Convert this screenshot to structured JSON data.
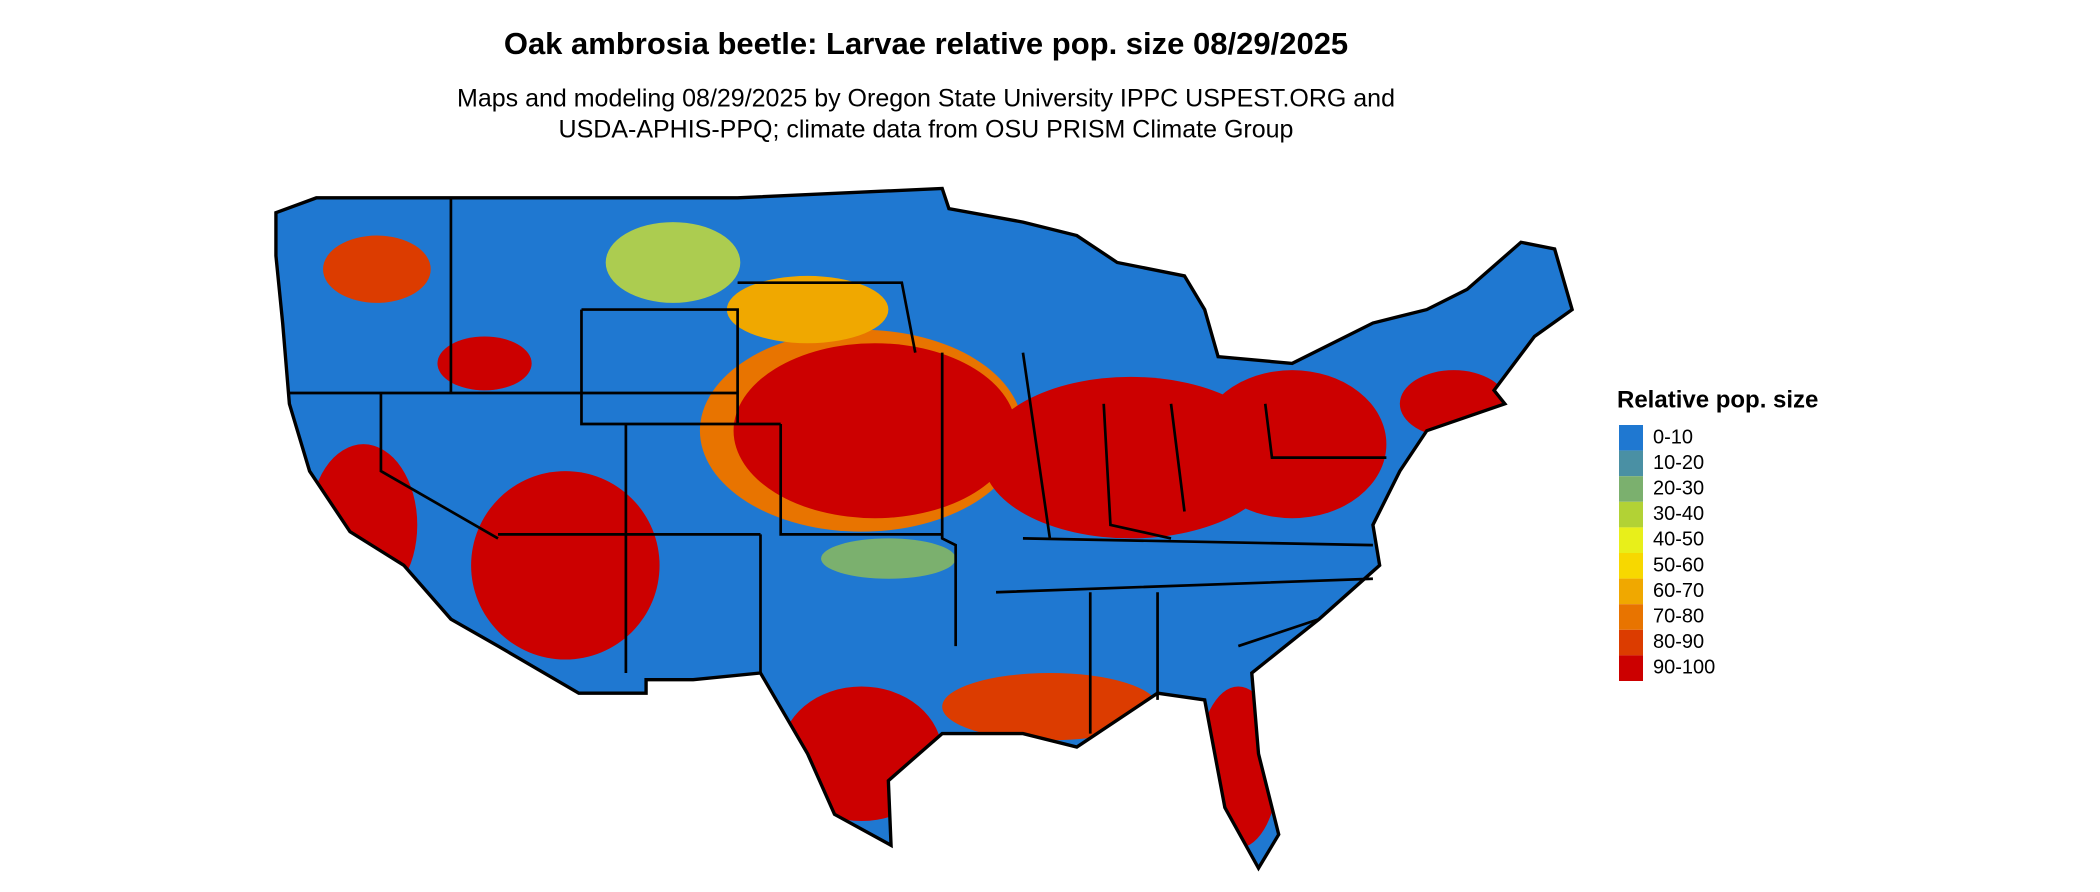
{
  "title": "Oak ambrosia beetle: Larvae relative pop. size 08/29/2025",
  "subtitle": [
    "Maps and modeling 08/29/2025 by Oregon State University IPPC USPEST.ORG and",
    "USDA-APHIS-PPQ; climate data from OSU PRISM Climate Group"
  ],
  "legend": {
    "title": "Relative pop. size",
    "items": [
      {
        "label": "0-10",
        "color": "#1f78d1"
      },
      {
        "label": "10-20",
        "color": "#4a90a4"
      },
      {
        "label": "20-30",
        "color": "#7bb06e"
      },
      {
        "label": "30-40",
        "color": "#b2d235"
      },
      {
        "label": "40-50",
        "color": "#e8ef1a"
      },
      {
        "label": "50-60",
        "color": "#f7d800"
      },
      {
        "label": "60-70",
        "color": "#f0a800"
      },
      {
        "label": "70-80",
        "color": "#e87400"
      },
      {
        "label": "80-90",
        "color": "#dc3c00"
      },
      {
        "label": "90-100",
        "color": "#cc0000"
      }
    ]
  }
}
